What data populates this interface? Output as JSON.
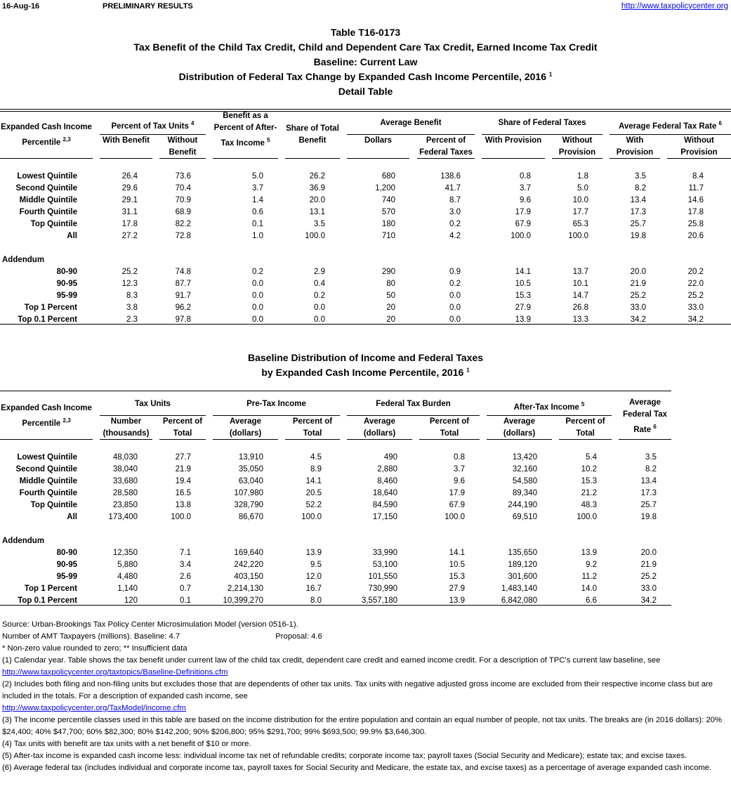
{
  "header": {
    "date": "16-Aug-16",
    "status": "PRELIMINARY RESULTS",
    "url": "http://www.taxpolicycenter.org"
  },
  "titles": [
    "Table T16-0173",
    "Tax Benefit of the Child Tax Credit, Child and Dependent Care Tax Credit, Earned Income Tax Credit",
    "Baseline: Current Law",
    "Distribution of Federal Tax Change by Expanded Cash Income Percentile, 2016",
    "Detail Table"
  ],
  "title_sup": "1",
  "table1": {
    "label_header": "Expanded Cash Income",
    "label_header2": "Percentile",
    "label_sup": "2,3",
    "groups": [
      {
        "label": "Percent of Tax Units",
        "sup": "4"
      },
      {
        "label": "Benefit as a Percent of After-Tax Income",
        "sup": "5"
      },
      {
        "label": "Share of Total Benefit"
      },
      {
        "label": "Average Benefit"
      },
      {
        "label": "Share of Federal Taxes"
      },
      {
        "label": "Average Federal Tax Rate",
        "sup": "6"
      }
    ],
    "columns": [
      "With Benefit",
      "Without Benefit",
      "",
      "",
      "Dollars",
      "Percent of Federal Taxes",
      "With Provision",
      "Without Provision",
      "With Provision",
      "Without Provision"
    ],
    "rows": [
      {
        "label": "Lowest Quintile",
        "values": [
          "26.4",
          "73.6",
          "5.0",
          "26.2",
          "680",
          "138.6",
          "0.8",
          "1.8",
          "3.5",
          "8.4"
        ]
      },
      {
        "label": "Second Quintile",
        "values": [
          "29.6",
          "70.4",
          "3.7",
          "36.9",
          "1,200",
          "41.7",
          "3.7",
          "5.0",
          "8.2",
          "11.7"
        ]
      },
      {
        "label": "Middle Quintile",
        "values": [
          "29.1",
          "70.9",
          "1.4",
          "20.0",
          "740",
          "8.7",
          "9.6",
          "10.0",
          "13.4",
          "14.6"
        ]
      },
      {
        "label": "Fourth Quintile",
        "values": [
          "31.1",
          "68.9",
          "0.6",
          "13.1",
          "570",
          "3.0",
          "17.9",
          "17.7",
          "17.3",
          "17.8"
        ]
      },
      {
        "label": "Top Quintile",
        "values": [
          "17.8",
          "82.2",
          "0.1",
          "3.5",
          "180",
          "0.2",
          "67.9",
          "65.3",
          "25.7",
          "25.8"
        ]
      },
      {
        "label": "All",
        "values": [
          "27.2",
          "72.8",
          "1.0",
          "100.0",
          "710",
          "4.2",
          "100.0",
          "100.0",
          "19.8",
          "20.6"
        ]
      }
    ],
    "addendum_label": "Addendum",
    "addendum": [
      {
        "label": "80-90",
        "values": [
          "25.2",
          "74.8",
          "0.2",
          "2.9",
          "290",
          "0.9",
          "14.1",
          "13.7",
          "20.0",
          "20.2"
        ]
      },
      {
        "label": "90-95",
        "values": [
          "12.3",
          "87.7",
          "0.0",
          "0.4",
          "80",
          "0.2",
          "10.5",
          "10.1",
          "21.9",
          "22.0"
        ]
      },
      {
        "label": "95-99",
        "values": [
          "8.3",
          "91.7",
          "0.0",
          "0.2",
          "50",
          "0.0",
          "15.3",
          "14.7",
          "25.2",
          "25.2"
        ]
      },
      {
        "label": "Top 1 Percent",
        "values": [
          "3.8",
          "96.2",
          "0.0",
          "0.0",
          "20",
          "0.0",
          "27.9",
          "26.8",
          "33.0",
          "33.0"
        ]
      },
      {
        "label": "Top 0.1 Percent",
        "values": [
          "2.3",
          "97.8",
          "0.0",
          "0.0",
          "20",
          "0.0",
          "13.9",
          "13.3",
          "34.2",
          "34.2"
        ]
      }
    ]
  },
  "table2_titles": [
    "Baseline Distribution of Income and Federal Taxes",
    "by Expanded Cash Income Percentile, 2016"
  ],
  "table2": {
    "label_header": "Expanded Cash Income",
    "label_header2": "Percentile",
    "label_sup": "2,3",
    "groups": [
      {
        "label": "Tax Units"
      },
      {
        "label": "Pre-Tax Income"
      },
      {
        "label": "Federal Tax Burden"
      },
      {
        "label": "After-Tax Income",
        "sup": "5"
      },
      {
        "label": "Average Federal Tax Rate",
        "sup": "6"
      }
    ],
    "columns": [
      "Number (thousands)",
      "Percent of Total",
      "Average (dollars)",
      "Percent of Total",
      "Average (dollars)",
      "Percent of Total",
      "Average (dollars)",
      "Percent of Total",
      ""
    ],
    "rows": [
      {
        "label": "Lowest Quintile",
        "values": [
          "48,030",
          "27.7",
          "13,910",
          "4.5",
          "490",
          "0.8",
          "13,420",
          "5.4",
          "3.5"
        ]
      },
      {
        "label": "Second Quintile",
        "values": [
          "38,040",
          "21.9",
          "35,050",
          "8.9",
          "2,880",
          "3.7",
          "32,160",
          "10.2",
          "8.2"
        ]
      },
      {
        "label": "Middle Quintile",
        "values": [
          "33,680",
          "19.4",
          "63,040",
          "14.1",
          "8,460",
          "9.6",
          "54,580",
          "15.3",
          "13.4"
        ]
      },
      {
        "label": "Fourth Quintile",
        "values": [
          "28,580",
          "16.5",
          "107,980",
          "20.5",
          "18,640",
          "17.9",
          "89,340",
          "21.2",
          "17.3"
        ]
      },
      {
        "label": "Top Quintile",
        "values": [
          "23,850",
          "13.8",
          "328,790",
          "52.2",
          "84,590",
          "67.9",
          "244,190",
          "48.3",
          "25.7"
        ]
      },
      {
        "label": "All",
        "values": [
          "173,400",
          "100.0",
          "86,670",
          "100.0",
          "17,150",
          "100.0",
          "69,510",
          "100.0",
          "19.8"
        ]
      }
    ],
    "addendum_label": "Addendum",
    "addendum": [
      {
        "label": "80-90",
        "values": [
          "12,350",
          "7.1",
          "169,640",
          "13.9",
          "33,990",
          "14.1",
          "135,650",
          "13.9",
          "20.0"
        ]
      },
      {
        "label": "90-95",
        "values": [
          "5,880",
          "3.4",
          "242,220",
          "9.5",
          "53,100",
          "10.5",
          "189,120",
          "9.2",
          "21.9"
        ]
      },
      {
        "label": "95-99",
        "values": [
          "4,480",
          "2.6",
          "403,150",
          "12.0",
          "101,550",
          "15.3",
          "301,600",
          "11.2",
          "25.2"
        ]
      },
      {
        "label": "Top 1 Percent",
        "values": [
          "1,140",
          "0.7",
          "2,214,130",
          "16.7",
          "730,990",
          "27.9",
          "1,483,140",
          "14.0",
          "33.0"
        ]
      },
      {
        "label": "Top 0.1 Percent",
        "values": [
          "120",
          "0.1",
          "10,399,270",
          "8.0",
          "3,557,180",
          "13.9",
          "6,842,080",
          "6.6",
          "34.2"
        ]
      }
    ]
  },
  "notes": {
    "source": "Source: Urban-Brookings Tax Policy Center Microsimulation Model (version 0516-1).",
    "amt": "Number of AMT Taxpayers (millions).  Baseline: 4.7",
    "amt_proposal": "Proposal: 4.6",
    "legend": "* Non-zero value rounded to zero; ** Insufficient data",
    "n1": "(1) Calendar year. Table shows the tax benefit under current law of the child tax credit, dependent care credit and earned income credit. For a description of TPC's current law baseline, see",
    "n1_link": "http://www.taxpolicycenter.org/taxtopics/Baseline-Definitions.cfm",
    "n2": "(2) Includes both filing and non-filing units but excludes those that are dependents of other tax units. Tax units with negative adjusted gross income are excluded from their respective income class but are included in the totals. For a description of expanded cash income, see",
    "n2_link": "http://www.taxpolicycenter.org/TaxModel/income.cfm",
    "n3": "(3) The income percentile classes used in this table are based on the income distribution for the entire population and contain an equal number of people, not tax units. The breaks are (in 2016 dollars): 20% $24,400; 40% $47,700; 60% $82,300; 80% $142,200; 90% $206,800; 95% $291,700; 99% $693,500; 99.9% $3,646,300.",
    "n4": "(4) Tax units with benefit are tax units with a net benefit of $10 or more.",
    "n5": "(5) After-tax income is expanded cash income less: individual income tax net of refundable credits; corporate income tax; payroll taxes (Social Security and Medicare); estate tax; and excise taxes.",
    "n6": "(6) Average federal tax (includes individual and corporate income tax, payroll taxes for Social Security and Medicare, the estate tax, and excise taxes) as a percentage of average expanded cash income."
  }
}
